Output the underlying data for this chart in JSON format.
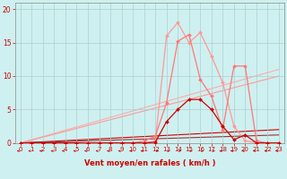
{
  "xlabel": "Vent moyen/en rafales ( km/h )",
  "bg_color": "#cff0f0",
  "grid_color": "#aacfcf",
  "text_color": "#cc0000",
  "xlim": [
    -0.5,
    23.5
  ],
  "ylim": [
    0,
    21
  ],
  "yticks": [
    0,
    5,
    10,
    15,
    20
  ],
  "xticks": [
    0,
    1,
    2,
    3,
    4,
    5,
    6,
    7,
    8,
    9,
    10,
    11,
    12,
    13,
    14,
    15,
    16,
    17,
    18,
    19,
    20,
    21,
    22,
    23
  ],
  "line_light_pink": {
    "x": [
      0,
      1,
      2,
      3,
      4,
      5,
      6,
      7,
      8,
      9,
      10,
      11,
      12,
      13,
      14,
      15,
      16,
      17,
      18,
      19,
      20,
      21,
      22,
      23
    ],
    "y": [
      0,
      0,
      0,
      0,
      0,
      0,
      0,
      0,
      0,
      0,
      0,
      0,
      0.3,
      16.0,
      18.0,
      15.0,
      16.5,
      13.0,
      9.0,
      2.5,
      0.3,
      0,
      0,
      0
    ],
    "color": "#ff9999",
    "marker": "D",
    "markersize": 2,
    "linewidth": 0.9
  },
  "line_medium_pink": {
    "x": [
      0,
      1,
      2,
      3,
      4,
      5,
      6,
      7,
      8,
      9,
      10,
      11,
      12,
      13,
      14,
      15,
      16,
      17,
      18,
      19,
      20,
      21,
      22,
      23
    ],
    "y": [
      0,
      0,
      0,
      0,
      0,
      0,
      0,
      0,
      0,
      0,
      0,
      0.3,
      1.0,
      6.0,
      15.2,
      16.2,
      9.5,
      7.0,
      2.0,
      11.5,
      11.5,
      0.3,
      0,
      0
    ],
    "color": "#ff7777",
    "marker": "D",
    "markersize": 2,
    "linewidth": 0.9
  },
  "line_dark_red": {
    "x": [
      0,
      1,
      2,
      3,
      4,
      5,
      6,
      7,
      8,
      9,
      10,
      11,
      12,
      13,
      14,
      15,
      16,
      17,
      18,
      19,
      20,
      21,
      22,
      23
    ],
    "y": [
      0,
      0,
      0,
      0,
      0,
      0,
      0,
      0,
      0,
      0,
      0,
      0,
      0.1,
      3.2,
      5.0,
      6.5,
      6.5,
      5.0,
      2.5,
      0.5,
      1.2,
      0,
      0,
      0
    ],
    "color": "#cc0000",
    "marker": "D",
    "markersize": 2,
    "linewidth": 0.9
  },
  "line_diag1": {
    "x": [
      0,
      23
    ],
    "y": [
      0,
      11.0
    ],
    "color": "#ffaaaa",
    "linewidth": 0.8
  },
  "line_diag2": {
    "x": [
      0,
      23
    ],
    "y": [
      0,
      10.0
    ],
    "color": "#ff9999",
    "linewidth": 0.8
  },
  "line_slope_dark1": {
    "x": [
      0,
      23
    ],
    "y": [
      0,
      2.0
    ],
    "color": "#cc0000",
    "linewidth": 0.8
  },
  "line_slope_dark2": {
    "x": [
      0,
      23
    ],
    "y": [
      0,
      1.2
    ],
    "color": "#993333",
    "linewidth": 0.8
  },
  "arrows": {
    "x": [
      0,
      1,
      2,
      3,
      4,
      5,
      6,
      7,
      8,
      9,
      10,
      11,
      12,
      13,
      14,
      15,
      16,
      17,
      18,
      19,
      20,
      21,
      22,
      23
    ],
    "direction": [
      -1,
      -1,
      -1,
      -1,
      -1,
      -1,
      -1,
      -1,
      -1,
      -1,
      -1,
      -1,
      1,
      1,
      1,
      1,
      1,
      1,
      -1,
      -1,
      -1,
      -1,
      -1,
      -1
    ],
    "color": "#cc0000"
  }
}
